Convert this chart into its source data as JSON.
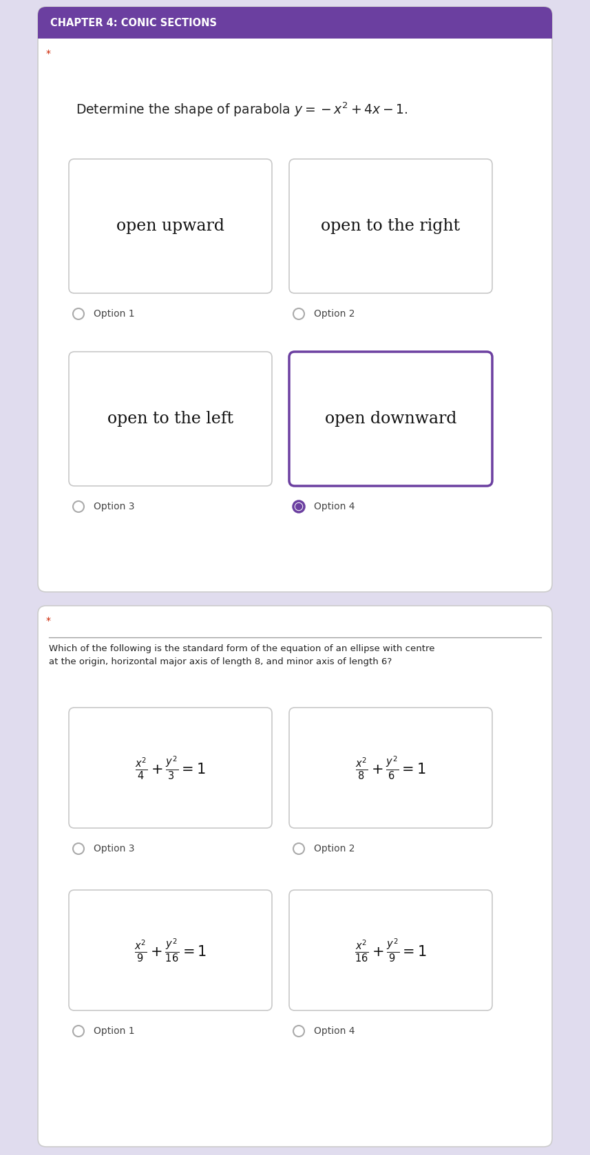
{
  "bg_color": "#e0dcee",
  "header_color": "#6b3fa0",
  "header_text": "CHAPTER 4: CONIC SECTIONS",
  "header_text_color": "#ffffff",
  "question1_text": "Determine the shape of parabola $y=-x^2+4x-1$.",
  "q1_options": [
    "open upward",
    "open to the right",
    "open to the left",
    "open downward"
  ],
  "q1_option_labels": [
    "Option 1",
    "Option 2",
    "Option 3",
    "Option 4"
  ],
  "q1_selected": 3,
  "question2_text": "Which of the following is the standard form of the equation of an ellipse with centre\nat the origin, horizontal major axis of length 8, and minor axis of length 6?",
  "q2_options": [
    "$\\frac{x^2}{4}+\\frac{y^2}{3}=1$",
    "$\\frac{x^2}{8}+\\frac{y^2}{6}=1$",
    "$\\frac{x^2}{9}+\\frac{y^2}{16}=1$",
    "$\\frac{x^2}{16}+\\frac{y^2}{9}=1$"
  ],
  "q2_option_labels": [
    "Option 3",
    "Option 2",
    "Option 1",
    "Option 4"
  ],
  "q2_selected": -1,
  "card_border_normal": "#c8c8c8",
  "card_border_selected": "#6b3fa0",
  "radio_color": "#6b3fa0",
  "option_label_color": "#444444",
  "star_color": "#cc2200",
  "text_color": "#222222",
  "fig_w": 8.57,
  "fig_h": 16.78,
  "dpi": 100
}
